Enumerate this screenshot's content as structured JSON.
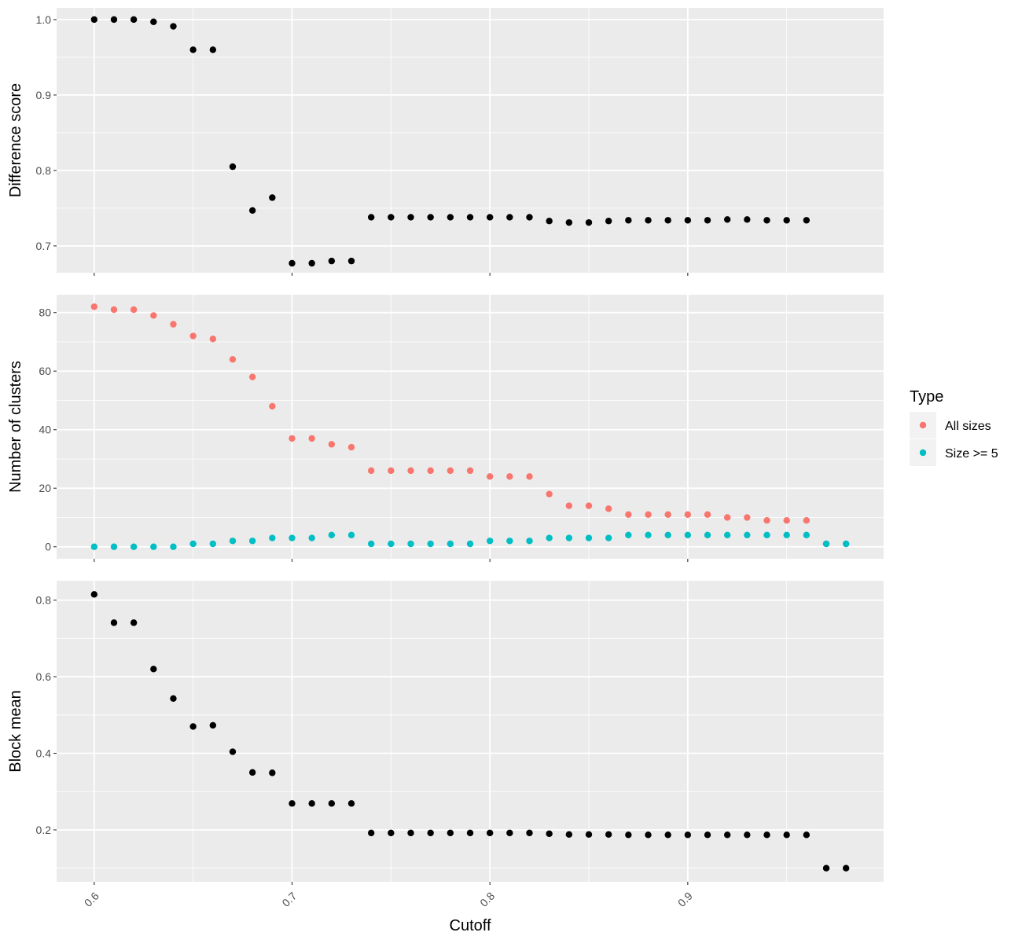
{
  "chart_data": {
    "type": "scatter",
    "x_title": "Cutoff",
    "x_ticks": [
      0.6,
      0.7,
      0.8,
      0.9
    ],
    "x_tick_labels": [
      "0.6",
      "0.7",
      "0.8",
      "0.9"
    ],
    "x_range": [
      0.581,
      0.999
    ],
    "x_tick_rotation": "45 degrees",
    "panels": [
      {
        "ylabel": "Difference score",
        "ylim": [
          0.6645,
          1.0155
        ],
        "y_ticks": [
          0.7,
          0.8,
          0.9,
          1.0
        ],
        "y_tick_labels": [
          "0.7",
          "0.8",
          "0.9",
          "1.0"
        ],
        "series": [
          {
            "color": "#000000",
            "x": [
              0.6,
              0.61,
              0.62,
              0.63,
              0.64,
              0.65,
              0.66,
              0.67,
              0.68,
              0.69,
              0.7,
              0.71,
              0.72,
              0.73,
              0.74,
              0.75,
              0.76,
              0.77,
              0.78,
              0.79,
              0.8,
              0.81,
              0.82,
              0.83,
              0.84,
              0.85,
              0.86,
              0.87,
              0.88,
              0.89,
              0.9,
              0.91,
              0.92,
              0.93,
              0.94,
              0.95,
              0.96
            ],
            "y": [
              1.0,
              1.0,
              1.0,
              0.997,
              0.991,
              0.96,
              0.96,
              0.805,
              0.747,
              0.764,
              0.677,
              0.677,
              0.68,
              0.68,
              0.738,
              0.738,
              0.738,
              0.738,
              0.738,
              0.738,
              0.738,
              0.738,
              0.738,
              0.733,
              0.731,
              0.731,
              0.733,
              0.734,
              0.734,
              0.734,
              0.734,
              0.734,
              0.735,
              0.735,
              0.734,
              0.734,
              0.734
            ]
          }
        ]
      },
      {
        "ylabel": "Number of clusters",
        "ylim": [
          -4.1,
          86.1
        ],
        "y_ticks": [
          0,
          20,
          40,
          60,
          80
        ],
        "y_tick_labels": [
          "0",
          "20",
          "40",
          "60",
          "80"
        ],
        "series": [
          {
            "name": "All sizes",
            "color": "#F8766D",
            "x": [
              0.6,
              0.61,
              0.62,
              0.63,
              0.64,
              0.65,
              0.66,
              0.67,
              0.68,
              0.69,
              0.7,
              0.71,
              0.72,
              0.73,
              0.74,
              0.75,
              0.76,
              0.77,
              0.78,
              0.79,
              0.8,
              0.81,
              0.82,
              0.83,
              0.84,
              0.85,
              0.86,
              0.87,
              0.88,
              0.89,
              0.9,
              0.91,
              0.92,
              0.93,
              0.94,
              0.95,
              0.96,
              0.97,
              0.98
            ],
            "y": [
              82,
              81,
              81,
              79,
              76,
              72,
              71,
              64,
              58,
              48,
              37,
              37,
              35,
              34,
              26,
              26,
              26,
              26,
              26,
              26,
              24,
              24,
              24,
              18,
              14,
              14,
              13,
              11,
              11,
              11,
              11,
              11,
              10,
              10,
              9,
              9,
              9,
              1,
              1
            ]
          },
          {
            "name": "Size >= 5",
            "color": "#00BFC4",
            "x": [
              0.6,
              0.61,
              0.62,
              0.63,
              0.64,
              0.65,
              0.66,
              0.67,
              0.68,
              0.69,
              0.7,
              0.71,
              0.72,
              0.73,
              0.74,
              0.75,
              0.76,
              0.77,
              0.78,
              0.79,
              0.8,
              0.81,
              0.82,
              0.83,
              0.84,
              0.85,
              0.86,
              0.87,
              0.88,
              0.89,
              0.9,
              0.91,
              0.92,
              0.93,
              0.94,
              0.95,
              0.96,
              0.97,
              0.98
            ],
            "y": [
              0,
              0,
              0,
              0,
              0,
              1,
              1,
              2,
              2,
              3,
              3,
              3,
              4,
              4,
              1,
              1,
              1,
              1,
              1,
              1,
              2,
              2,
              2,
              3,
              3,
              3,
              3,
              4,
              4,
              4,
              4,
              4,
              4,
              4,
              4,
              4,
              4,
              1,
              1
            ]
          }
        ]
      },
      {
        "ylabel": "Block mean",
        "ylim": [
          0.0645,
          0.8505
        ],
        "y_ticks": [
          0.2,
          0.4,
          0.6,
          0.8
        ],
        "y_tick_labels": [
          "0.2",
          "0.4",
          "0.6",
          "0.8"
        ],
        "series": [
          {
            "color": "#000000",
            "x": [
              0.6,
              0.61,
              0.62,
              0.63,
              0.64,
              0.65,
              0.66,
              0.67,
              0.68,
              0.69,
              0.7,
              0.71,
              0.72,
              0.73,
              0.74,
              0.75,
              0.76,
              0.77,
              0.78,
              0.79,
              0.8,
              0.81,
              0.82,
              0.83,
              0.84,
              0.85,
              0.86,
              0.87,
              0.88,
              0.89,
              0.9,
              0.91,
              0.92,
              0.93,
              0.94,
              0.95,
              0.96,
              0.97,
              0.98
            ],
            "y": [
              0.815,
              0.741,
              0.741,
              0.62,
              0.543,
              0.47,
              0.473,
              0.404,
              0.35,
              0.349,
              0.269,
              0.269,
              0.269,
              0.269,
              0.192,
              0.192,
              0.192,
              0.192,
              0.192,
              0.192,
              0.192,
              0.192,
              0.192,
              0.19,
              0.188,
              0.188,
              0.188,
              0.187,
              0.187,
              0.187,
              0.187,
              0.187,
              0.187,
              0.187,
              0.187,
              0.187,
              0.187,
              0.1,
              0.1
            ]
          }
        ]
      }
    ],
    "legend": {
      "title": "Type",
      "position": "right",
      "entries": [
        {
          "label": "All sizes",
          "color": "#F8766D"
        },
        {
          "label": "Size >= 5",
          "color": "#00BFC4"
        }
      ]
    },
    "grid": true,
    "panel_background": "#EBEBEB",
    "grid_color": "#FFFFFF"
  }
}
